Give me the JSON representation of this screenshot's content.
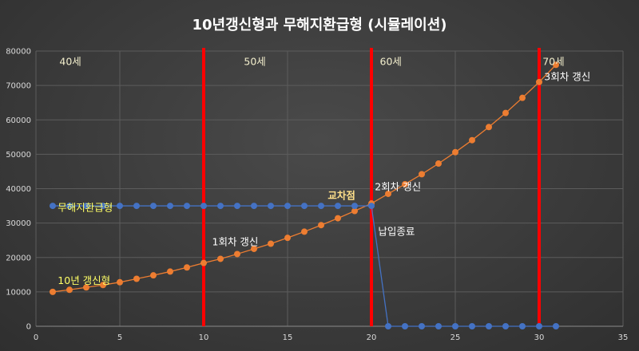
{
  "chart_data": {
    "type": "line",
    "title": "10년갱신형과  무해지환급형 (시뮬레이션)",
    "xlim": [
      0,
      35
    ],
    "ylim": [
      0,
      80000
    ],
    "x_ticks": [
      0,
      5,
      10,
      15,
      20,
      25,
      30,
      35
    ],
    "y_ticks": [
      0,
      10000,
      20000,
      30000,
      40000,
      50000,
      60000,
      70000,
      80000
    ],
    "grid": true,
    "series": [
      {
        "name": "10년 갱신형",
        "color": "#ed7d31",
        "x": [
          1,
          2,
          3,
          4,
          5,
          6,
          7,
          8,
          9,
          10,
          11,
          12,
          13,
          14,
          15,
          16,
          17,
          18,
          19,
          20,
          21,
          22,
          23,
          24,
          25,
          26,
          27,
          28,
          29,
          30,
          31
        ],
        "values": [
          10000,
          10600,
          11300,
          12000,
          12800,
          13800,
          14800,
          15900,
          17100,
          18400,
          19600,
          21000,
          22500,
          24000,
          25700,
          27500,
          29400,
          31400,
          33500,
          35700,
          38500,
          41300,
          44200,
          47300,
          50600,
          54100,
          57900,
          62000,
          66400,
          71000,
          76000
        ]
      },
      {
        "name": "무해지환급형",
        "color": "#4472c4",
        "x": [
          1,
          2,
          3,
          4,
          5,
          6,
          7,
          8,
          9,
          10,
          11,
          12,
          13,
          14,
          15,
          16,
          17,
          18,
          19,
          20,
          21,
          22,
          23,
          24,
          25,
          26,
          27,
          28,
          29,
          30,
          31
        ],
        "values": [
          35000,
          35000,
          35000,
          35000,
          35000,
          35000,
          35000,
          35000,
          35000,
          35000,
          35000,
          35000,
          35000,
          35000,
          35000,
          35000,
          35000,
          35000,
          35000,
          35000,
          0,
          0,
          0,
          0,
          0,
          0,
          0,
          0,
          0,
          0,
          0
        ]
      }
    ],
    "vertical_lines": [
      {
        "x": 10,
        "color": "#ff0000"
      },
      {
        "x": 20,
        "color": "#ff0000"
      },
      {
        "x": 30,
        "color": "#ff0000"
      }
    ],
    "annotations": [
      {
        "text": "40세",
        "x": 1.4,
        "y": 76000,
        "style": "ann-cream"
      },
      {
        "text": "50세",
        "x": 12.4,
        "y": 76000,
        "style": "ann-cream"
      },
      {
        "text": "60세",
        "x": 20.5,
        "y": 76000,
        "style": "ann-cream"
      },
      {
        "text": "70세",
        "x": 30.2,
        "y": 76000,
        "style": "ann-cream"
      },
      {
        "text": "3회차 갱신",
        "x": 30.3,
        "y": 71500,
        "style": "ann-white"
      },
      {
        "text": "2회차 갱신",
        "x": 20.2,
        "y": 39500,
        "style": "ann-white"
      },
      {
        "text": "교차점",
        "x": 17.4,
        "y": 37000,
        "style": "ann-bold"
      },
      {
        "text": "무해지환급형",
        "x": 1.3,
        "y": 33500,
        "style": "ann-yellow"
      },
      {
        "text": "1회차 갱신",
        "x": 10.5,
        "y": 23500,
        "style": "ann-white"
      },
      {
        "text": "납입종료",
        "x": 20.4,
        "y": 26500,
        "style": "ann-white"
      },
      {
        "text": "10년 갱신형",
        "x": 1.3,
        "y": 12300,
        "style": "ann-yellow"
      }
    ]
  }
}
